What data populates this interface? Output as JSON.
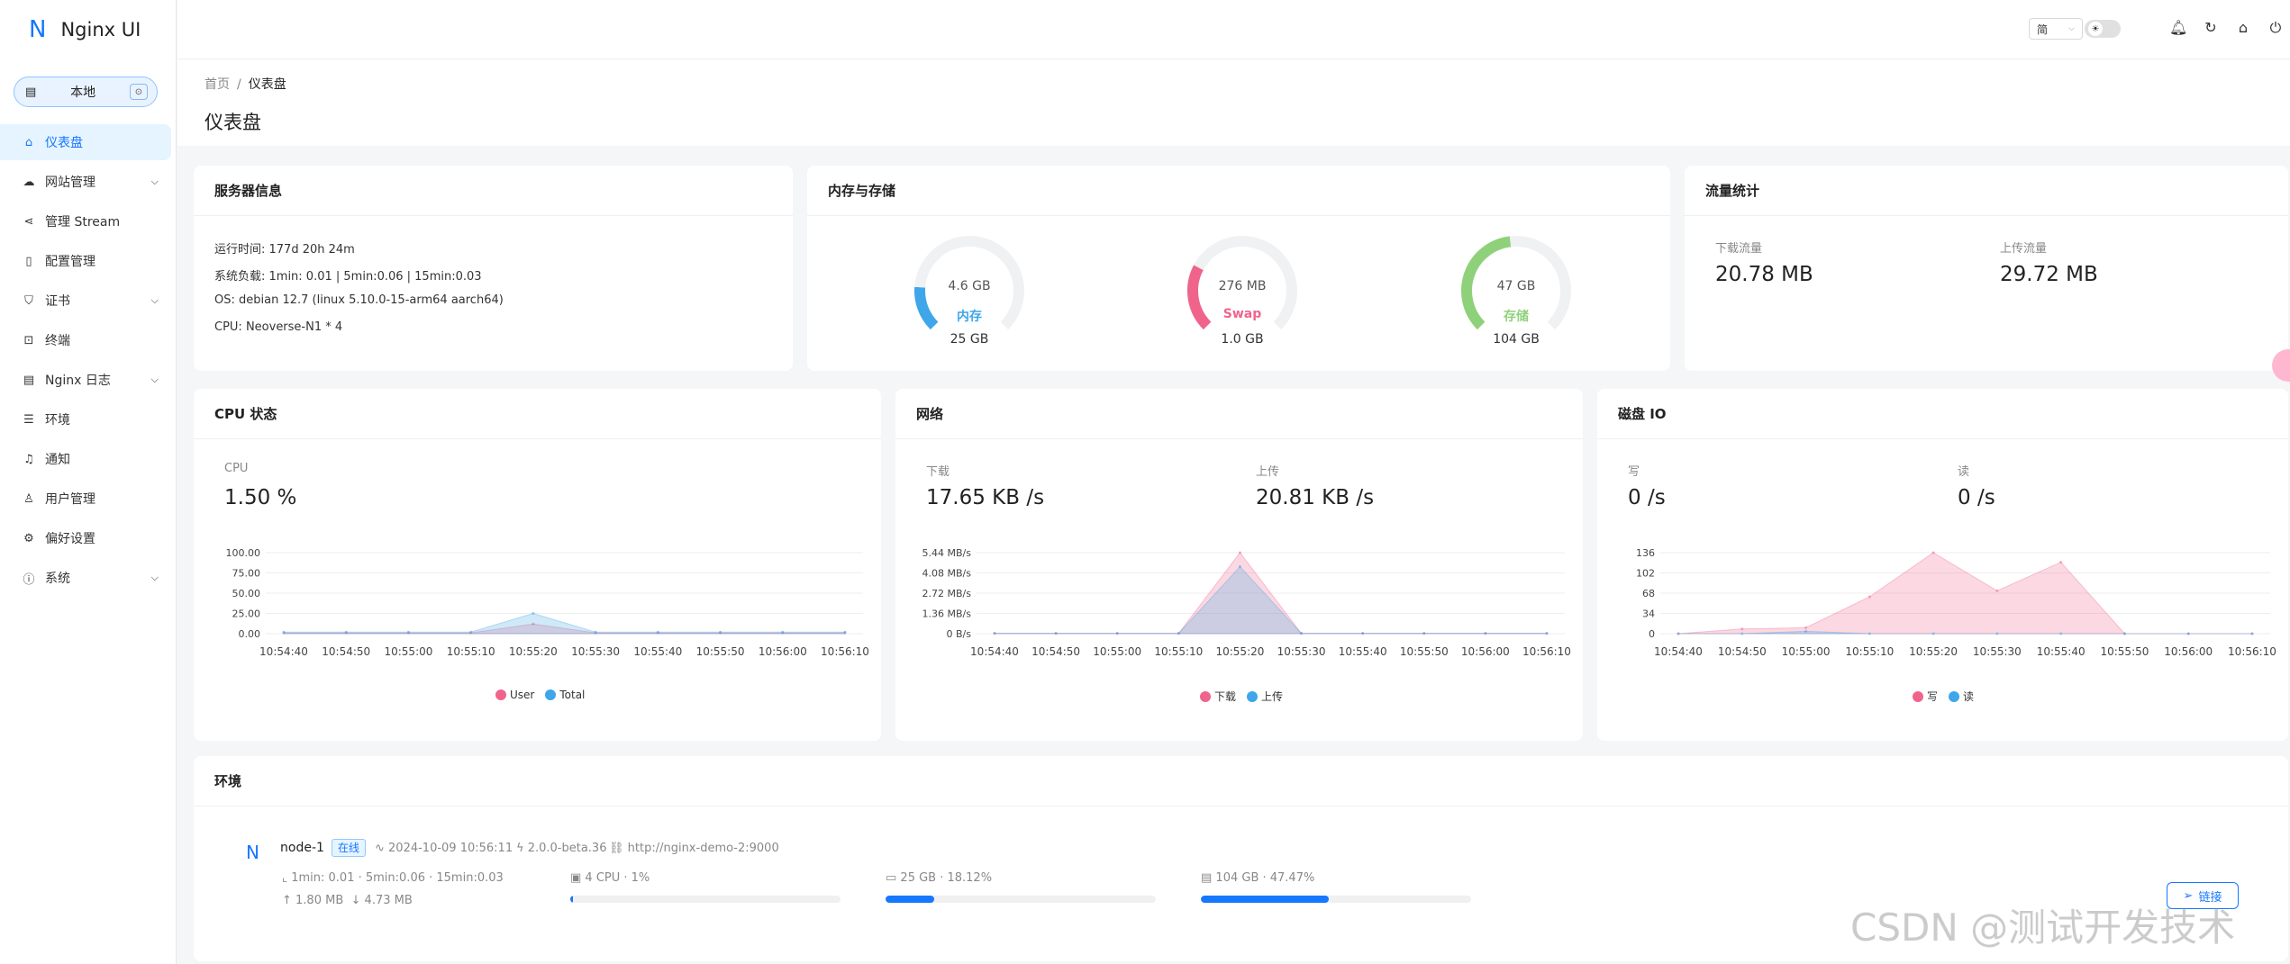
{
  "app": {
    "logo_letter": "N",
    "name": "Nginx UI"
  },
  "env_selector": {
    "label": "本地"
  },
  "sidebar": {
    "items": [
      {
        "label": "仪表盘",
        "icon": "home-icon",
        "active": true,
        "expandable": false
      },
      {
        "label": "网站管理",
        "icon": "cloud-icon",
        "active": false,
        "expandable": true
      },
      {
        "label": "管理 Stream",
        "icon": "share-icon",
        "active": false,
        "expandable": false
      },
      {
        "label": "配置管理",
        "icon": "file-icon",
        "active": false,
        "expandable": false
      },
      {
        "label": "证书",
        "icon": "shield-icon",
        "active": false,
        "expandable": true
      },
      {
        "label": "终端",
        "icon": "terminal-icon",
        "active": false,
        "expandable": false
      },
      {
        "label": "Nginx 日志",
        "icon": "log-icon",
        "active": false,
        "expandable": true
      },
      {
        "label": "环境",
        "icon": "database-icon",
        "active": false,
        "expandable": false
      },
      {
        "label": "通知",
        "icon": "bell-icon",
        "active": false,
        "expandable": false
      },
      {
        "label": "用户管理",
        "icon": "user-icon",
        "active": false,
        "expandable": false
      },
      {
        "label": "偏好设置",
        "icon": "gear-icon",
        "active": false,
        "expandable": false
      },
      {
        "label": "系统",
        "icon": "info-icon",
        "active": false,
        "expandable": true
      }
    ]
  },
  "header": {
    "language": "简"
  },
  "breadcrumb": {
    "home": "首页",
    "current": "仪表盘"
  },
  "page": {
    "title": "仪表盘"
  },
  "server_info": {
    "title": "服务器信息",
    "uptime": "运行时间: 177d 20h 24m",
    "load": "系统负载: 1min: 0.01 | 5min:0.06 | 15min:0.03",
    "os": "OS: debian 12.7 (linux 5.10.0-15-arm64 aarch64)",
    "cpu": "CPU: Neoverse-N1 * 4"
  },
  "memory_storage": {
    "title": "内存与存储",
    "gauges": [
      {
        "value": "4.6 GB",
        "label": "内存",
        "total": "25 GB",
        "percent": 18.12,
        "color": "#3ea6e9"
      },
      {
        "value": "276 MB",
        "label": "Swap",
        "total": "1.0 GB",
        "percent": 27,
        "color": "#f0648c"
      },
      {
        "value": "47 GB",
        "label": "存储",
        "total": "104 GB",
        "percent": 47.47,
        "color": "#8fd17a"
      }
    ]
  },
  "traffic": {
    "title": "流量统计",
    "download_label": "下载流量",
    "download_value": "20.78 MB",
    "upload_label": "上传流量",
    "upload_value": "29.72 MB"
  },
  "cpu_status": {
    "title": "CPU 状态",
    "stat_label": "CPU",
    "stat_value": "1.50 %",
    "legend": [
      {
        "name": "User",
        "color": "#f0648c"
      },
      {
        "name": "Total",
        "color": "#3ea6e9"
      }
    ]
  },
  "network": {
    "title": "网络",
    "download_label": "下载",
    "download_value": "17.65 KB /s",
    "upload_label": "上传",
    "upload_value": "20.81 KB /s",
    "legend": [
      {
        "name": "下载",
        "color": "#f0648c"
      },
      {
        "name": "上传",
        "color": "#3ea6e9"
      }
    ]
  },
  "disk_io": {
    "title": "磁盘 IO",
    "write_label": "写",
    "write_value": "0 /s",
    "read_label": "读",
    "read_value": "0 /s",
    "legend": [
      {
        "name": "写",
        "color": "#f0648c"
      },
      {
        "name": "读",
        "color": "#3ea6e9"
      }
    ]
  },
  "chart_data": [
    {
      "type": "area",
      "title": "CPU 状态",
      "x": [
        "10:54:40",
        "10:54:50",
        "10:55:00",
        "10:55:10",
        "10:55:20",
        "10:55:30",
        "10:55:40",
        "10:55:50",
        "10:56:00",
        "10:56:10"
      ],
      "y_ticks": [
        "100.00",
        "75.00",
        "50.00",
        "25.00",
        "0.00"
      ],
      "ylim": [
        0,
        100
      ],
      "series": [
        {
          "name": "User",
          "values": [
            1,
            1,
            1,
            1,
            12,
            1,
            1,
            1,
            1,
            1
          ]
        },
        {
          "name": "Total",
          "values": [
            2,
            2,
            2,
            2,
            25,
            2,
            2,
            2,
            2,
            2
          ]
        }
      ]
    },
    {
      "type": "area",
      "title": "网络",
      "x": [
        "10:54:40",
        "10:54:50",
        "10:55:00",
        "10:55:10",
        "10:55:20",
        "10:55:30",
        "10:55:40",
        "10:55:50",
        "10:56:00",
        "10:56:10"
      ],
      "y_ticks": [
        "5.44 MB/s",
        "4.08 MB/s",
        "2.72 MB/s",
        "1.36 MB/s",
        "0 B/s"
      ],
      "ylim": [
        0,
        5.44
      ],
      "series": [
        {
          "name": "下载",
          "values": [
            0.02,
            0.02,
            0.02,
            0.02,
            5.44,
            0.02,
            0.02,
            0.02,
            0.02,
            0.02
          ]
        },
        {
          "name": "上传",
          "values": [
            0.02,
            0.02,
            0.02,
            0.02,
            4.5,
            0.02,
            0.02,
            0.02,
            0.02,
            0.02
          ]
        }
      ]
    },
    {
      "type": "area",
      "title": "磁盘 IO",
      "x": [
        "10:54:40",
        "10:54:50",
        "10:55:00",
        "10:55:10",
        "10:55:20",
        "10:55:30",
        "10:55:40",
        "10:55:50",
        "10:56:00",
        "10:56:10"
      ],
      "y_ticks": [
        "136",
        "102",
        "68",
        "34",
        "0"
      ],
      "ylim": [
        0,
        136
      ],
      "series": [
        {
          "name": "写",
          "values": [
            0,
            8,
            10,
            62,
            136,
            72,
            120,
            0,
            0,
            0
          ]
        },
        {
          "name": "读",
          "values": [
            0,
            0,
            4,
            0,
            0,
            0,
            0,
            0,
            0,
            0
          ]
        }
      ]
    }
  ],
  "environment": {
    "title": "环境",
    "node": {
      "logo_letter": "N",
      "name": "node-1",
      "status": "在线",
      "time": "2024-10-09 10:56:11",
      "version": "2.0.0-beta.36",
      "url": "http://nginx-demo-2:9000",
      "load": "1min: 0.01 · 5min:0.06 · 15min:0.03",
      "net_up": "1.80 MB",
      "net_down": "4.73 MB",
      "cpu": "4 CPU · 1%",
      "cpu_percent": 1,
      "memory": "25 GB · 18.12%",
      "memory_percent": 18.12,
      "disk": "104 GB · 47.47%",
      "disk_percent": 47.47,
      "link_label": "链接"
    }
  },
  "watermark": "CSDN @测试开发技术"
}
